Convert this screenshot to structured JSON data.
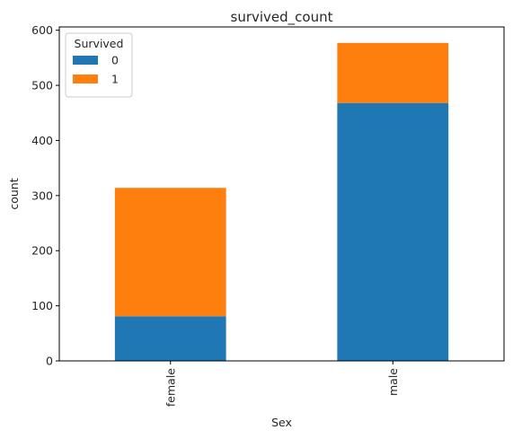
{
  "chart_data": {
    "type": "bar",
    "stacked": true,
    "title": "survived_count",
    "xlabel": "Sex",
    "ylabel": "count",
    "categories": [
      "female",
      "male"
    ],
    "series": [
      {
        "name": "0",
        "values": [
          81,
          468
        ],
        "color": "#1f77b4"
      },
      {
        "name": "1",
        "values": [
          233,
          109
        ],
        "color": "#ff7f0e"
      }
    ],
    "ylim": [
      0,
      606
    ],
    "yticks": [
      0,
      100,
      200,
      300,
      400,
      500,
      600
    ],
    "legend": {
      "title": "Survived",
      "placement": "top-left"
    },
    "grid": false
  }
}
